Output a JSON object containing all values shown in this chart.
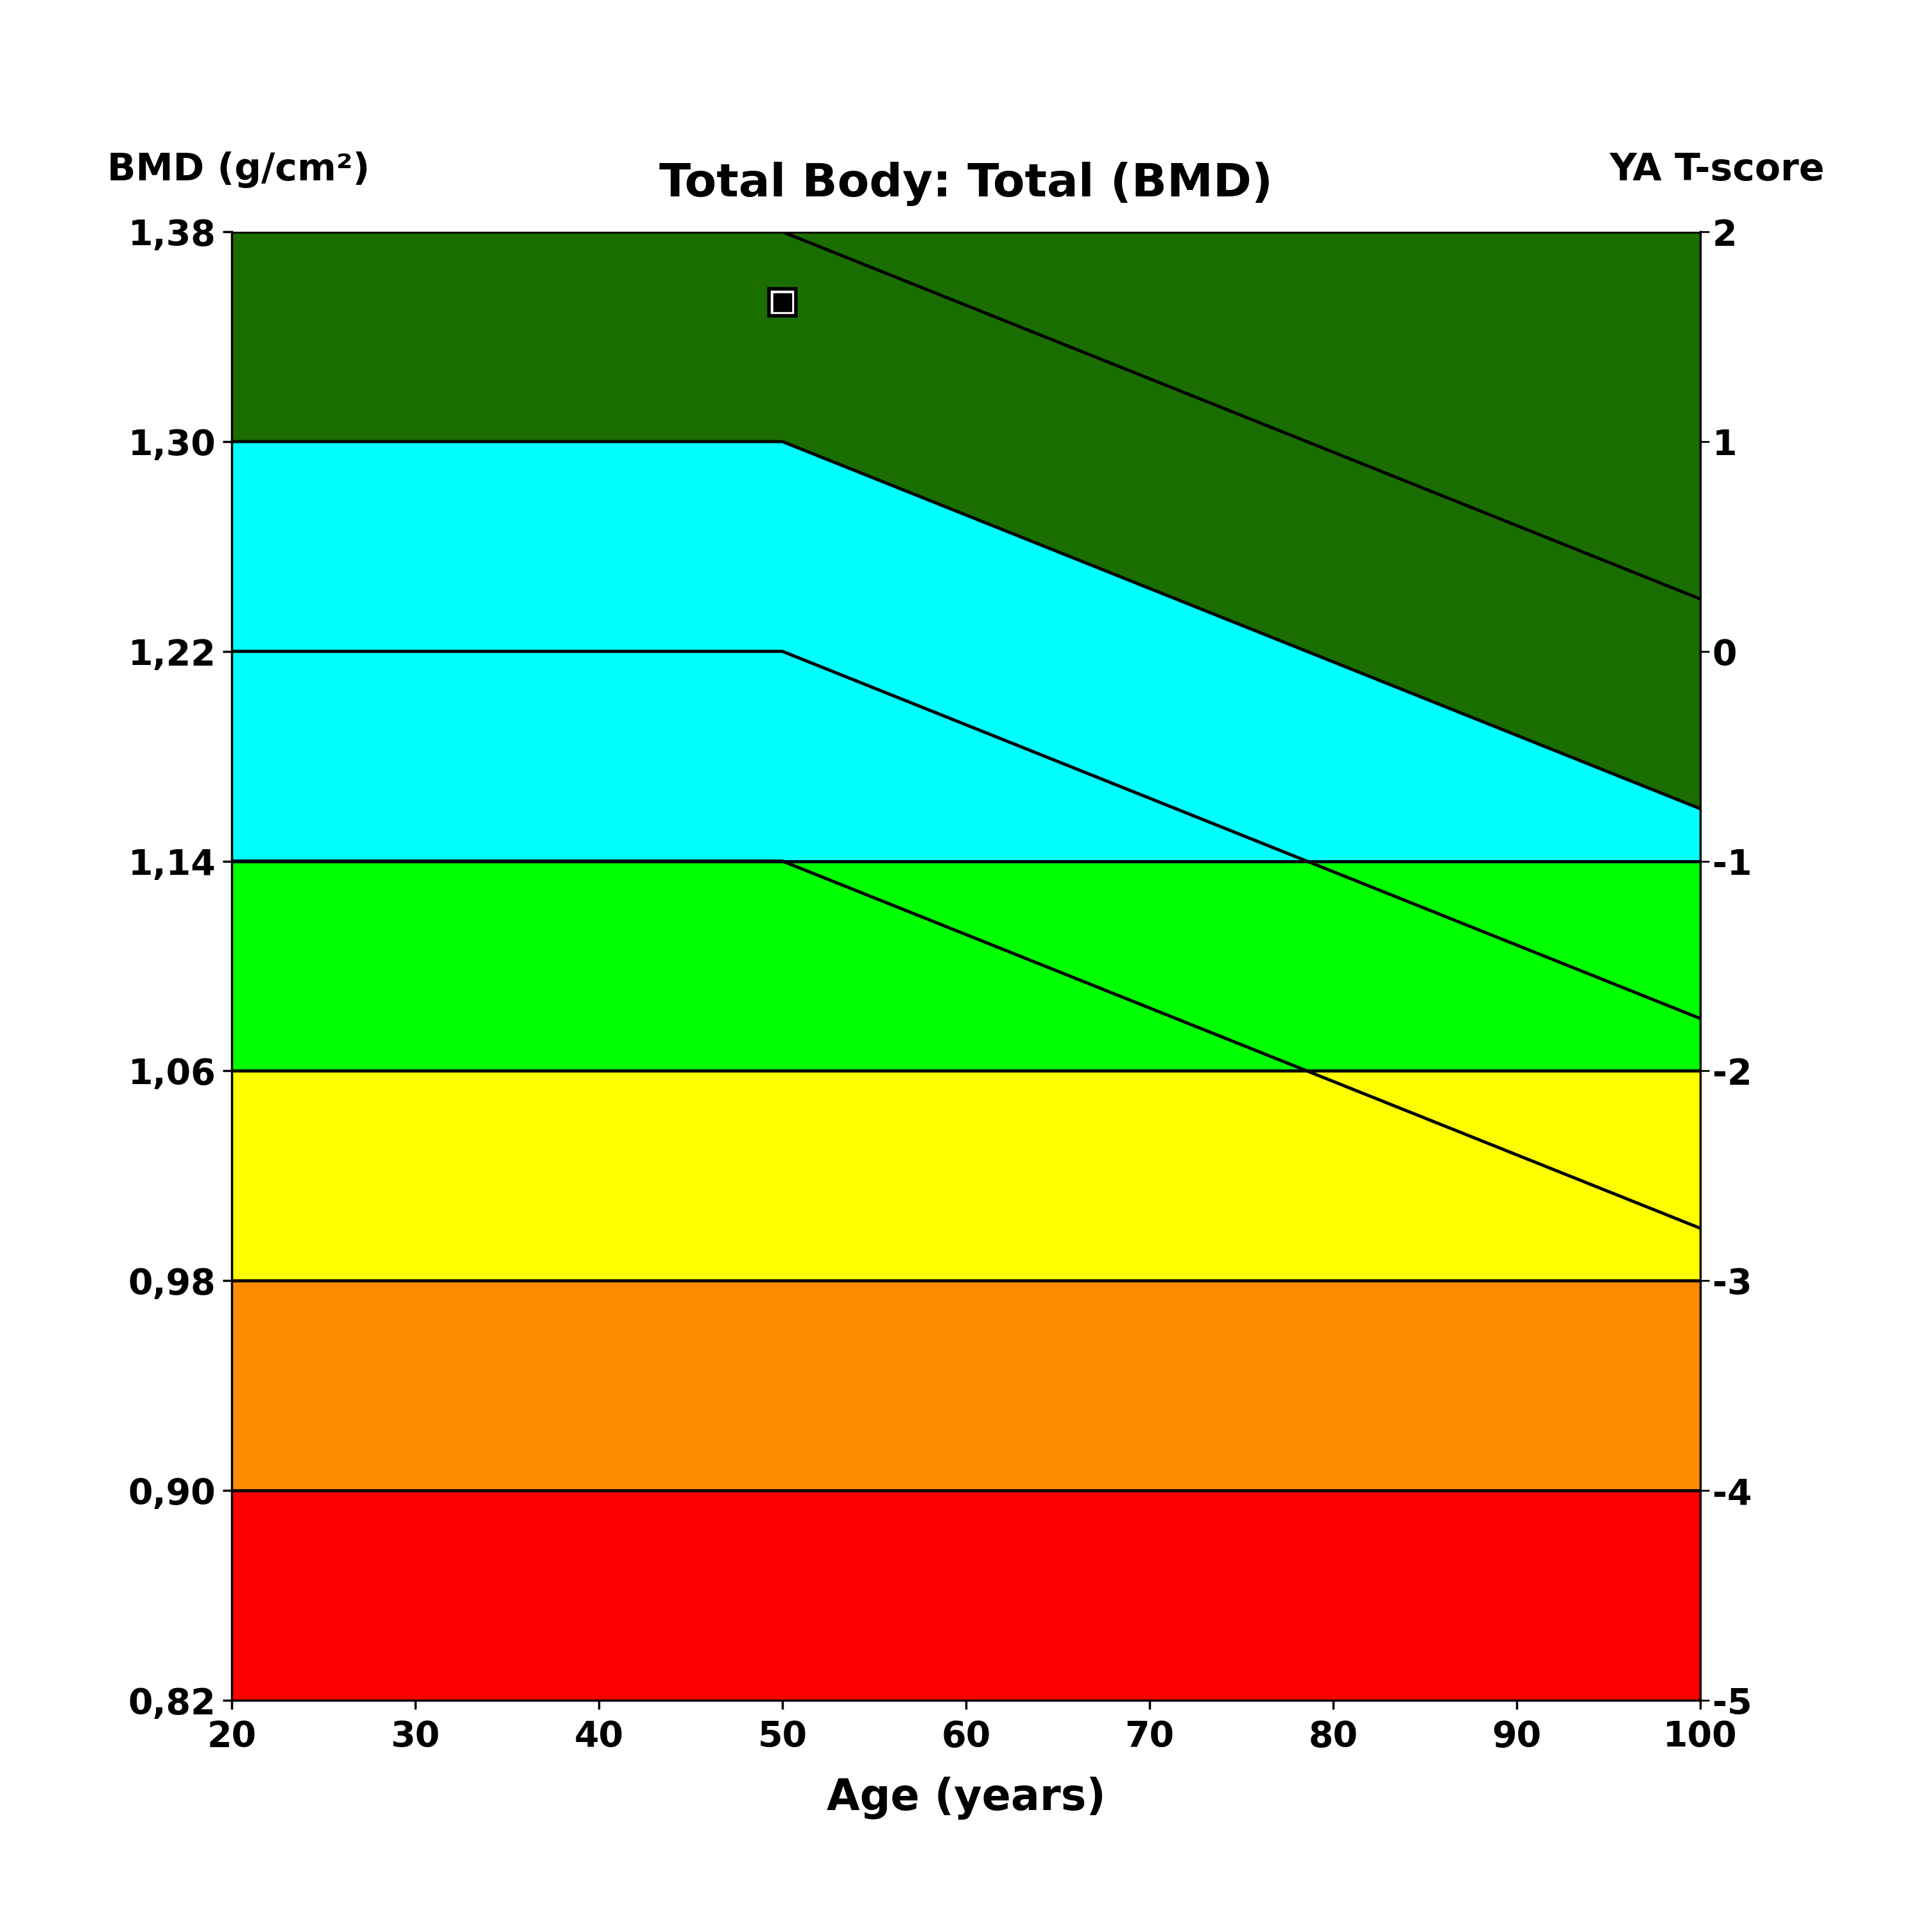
{
  "title": "Total Body: Total (BMD)",
  "left_label": "BMD (g/cm²)",
  "right_label": "YA T-score",
  "xlabel": "Age (years)",
  "xlim": [
    20,
    100
  ],
  "ylim": [
    0.82,
    1.38
  ],
  "x_ticks": [
    20,
    30,
    40,
    50,
    60,
    70,
    80,
    90,
    100
  ],
  "y_ticks_left": [
    0.82,
    0.9,
    0.98,
    1.06,
    1.14,
    1.22,
    1.3,
    1.38
  ],
  "y_ticks_left_labels": [
    "0,82",
    "0,90",
    "0,98",
    "1,06",
    "1,14",
    "1,22",
    "1,30",
    "1,38"
  ],
  "y_ticks_right": [
    -5,
    -4,
    -3,
    -2,
    -1,
    0,
    1,
    2
  ],
  "color_dark_green": "#1a6e00",
  "color_cyan": "#00ffff",
  "color_bright_green": "#00ff00",
  "color_yellow": "#ffff00",
  "color_orange": "#ff8c00",
  "color_red": "#ff0000",
  "YA_mean": 1.22,
  "YA_sd": 0.08,
  "flat_age": 50,
  "decline_rate": 0.0028,
  "marker_x": 50,
  "marker_y": 1.353,
  "title_fontsize": 52,
  "label_fontsize": 42,
  "tick_fontsize": 40
}
